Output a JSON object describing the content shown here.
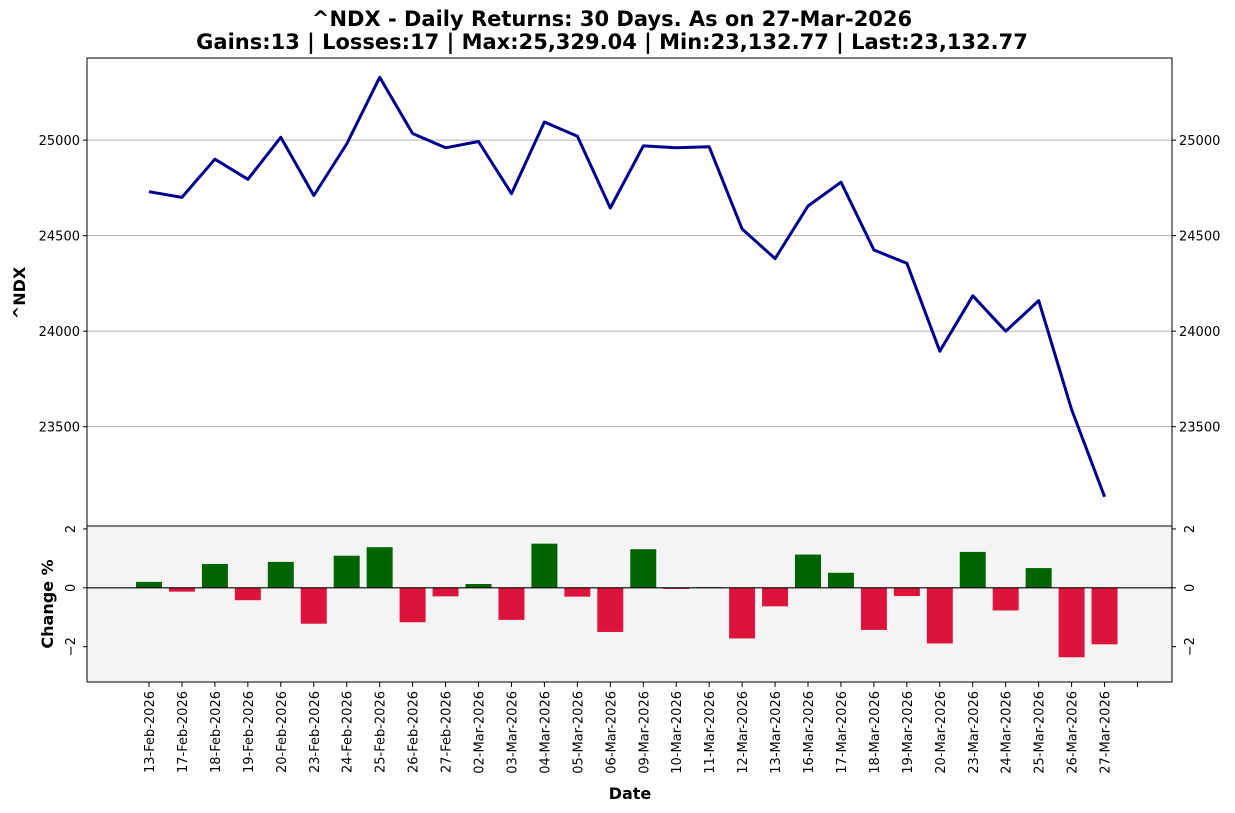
{
  "title_line1": "^NDX - Daily Returns: 30 Days. As on 27-Mar-2026",
  "title_line2": "Gains:13 | Losses:17 | Max:25,329.04 | Min:23,132.77 | Last:23,132.77",
  "chart_data": [
    {
      "type": "line",
      "ylabel": "^NDX",
      "xlabel": "",
      "ylim": [
        22980,
        25430
      ],
      "yticks": [
        "23500",
        "24000",
        "24500",
        "25000"
      ],
      "grid": "horizontal",
      "line_color": "#00008b",
      "x": [
        "13-Feb-2026",
        "17-Feb-2026",
        "18-Feb-2026",
        "19-Feb-2026",
        "20-Feb-2026",
        "23-Feb-2026",
        "24-Feb-2026",
        "25-Feb-2026",
        "26-Feb-2026",
        "27-Feb-2026",
        "02-Mar-2026",
        "03-Mar-2026",
        "04-Mar-2026",
        "05-Mar-2026",
        "06-Mar-2026",
        "09-Mar-2026",
        "10-Mar-2026",
        "11-Mar-2026",
        "12-Mar-2026",
        "13-Mar-2026",
        "16-Mar-2026",
        "17-Mar-2026",
        "18-Mar-2026",
        "19-Mar-2026",
        "20-Mar-2026",
        "23-Mar-2026",
        "24-Mar-2026",
        "25-Mar-2026",
        "26-Mar-2026",
        "27-Mar-2026"
      ],
      "values": [
        24730,
        24700,
        24900,
        24795,
        25015,
        24710,
        24980,
        25329.04,
        25035,
        24960,
        24993,
        24720,
        25095,
        25020,
        24645,
        24970,
        24960,
        24965,
        24535,
        24380,
        24655,
        24780,
        24425,
        24355,
        23895,
        24185,
        24000,
        24160,
        23590,
        23132.77
      ]
    },
    {
      "type": "bar",
      "ylabel": "Change %",
      "xlabel": "Date",
      "ylim": [
        -3.2,
        2.1
      ],
      "yticks": [
        "2",
        "0",
        "−2"
      ],
      "positive_color": "#006400",
      "negative_color": "#dc143c",
      "categories": [
        "13-Feb-2026",
        "17-Feb-2026",
        "18-Feb-2026",
        "19-Feb-2026",
        "20-Feb-2026",
        "23-Feb-2026",
        "24-Feb-2026",
        "25-Feb-2026",
        "26-Feb-2026",
        "27-Feb-2026",
        "02-Mar-2026",
        "03-Mar-2026",
        "04-Mar-2026",
        "05-Mar-2026",
        "06-Mar-2026",
        "09-Mar-2026",
        "10-Mar-2026",
        "11-Mar-2026",
        "12-Mar-2026",
        "13-Mar-2026",
        "16-Mar-2026",
        "17-Mar-2026",
        "18-Mar-2026",
        "19-Mar-2026",
        "20-Mar-2026",
        "23-Mar-2026",
        "24-Mar-2026",
        "25-Mar-2026",
        "26-Mar-2026",
        "27-Mar-2026"
      ],
      "values": [
        0.2,
        -0.13,
        0.81,
        -0.42,
        0.88,
        -1.22,
        1.09,
        1.38,
        -1.17,
        -0.29,
        0.13,
        -1.09,
        1.5,
        -0.3,
        -1.5,
        1.31,
        -0.04,
        0.02,
        -1.72,
        -0.63,
        1.13,
        0.51,
        -1.43,
        -0.28,
        -1.89,
        1.22,
        -0.77,
        0.67,
        -2.36,
        -1.92
      ]
    }
  ]
}
